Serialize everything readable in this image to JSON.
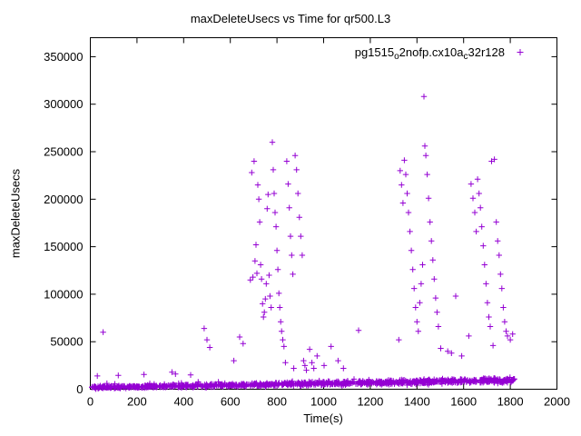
{
  "window": {
    "background": "#ffffff"
  },
  "chart_data": {
    "type": "scatter",
    "title": "maxDeleteUsecs vs Time for qr500.L3",
    "xlabel": "Time(s)",
    "ylabel": "maxDeleteUsecs",
    "xlim": [
      0,
      2000
    ],
    "ylim": [
      0,
      370000
    ],
    "xticks": [
      0,
      200,
      400,
      600,
      800,
      1000,
      1200,
      1400,
      1600,
      1800,
      2000
    ],
    "yticks": [
      0,
      50000,
      100000,
      150000,
      200000,
      250000,
      300000,
      350000
    ],
    "grid": false,
    "legend_position": "top-right-inside",
    "series": [
      {
        "name": "pg1515_o2nofp.cx10a_c32r128",
        "label_parts": [
          {
            "text": "pg1515",
            "sub": false
          },
          {
            "text": "o",
            "sub": true
          },
          {
            "text": "2nofp.cx10a",
            "sub": false
          },
          {
            "text": "c",
            "sub": true
          },
          {
            "text": "32r128",
            "sub": false
          }
        ],
        "marker": "plus",
        "color": "#9400d3",
        "outliers": [
          [
            30,
            14000
          ],
          [
            55,
            60000
          ],
          [
            120,
            14500
          ],
          [
            230,
            15500
          ],
          [
            350,
            18000
          ],
          [
            365,
            16000
          ],
          [
            430,
            15000
          ],
          [
            488,
            64000
          ],
          [
            500,
            52000
          ],
          [
            512,
            44000
          ],
          [
            615,
            30000
          ],
          [
            640,
            55000
          ],
          [
            655,
            48000
          ],
          [
            686,
            115000
          ],
          [
            692,
            228000
          ],
          [
            697,
            118000
          ],
          [
            702,
            240000
          ],
          [
            706,
            135000
          ],
          [
            710,
            152000
          ],
          [
            714,
            122000
          ],
          [
            718,
            215000
          ],
          [
            722,
            200000
          ],
          [
            726,
            176000
          ],
          [
            730,
            131000
          ],
          [
            734,
            116000
          ],
          [
            738,
            90000
          ],
          [
            742,
            76000
          ],
          [
            746,
            81000
          ],
          [
            750,
            95000
          ],
          [
            754,
            111000
          ],
          [
            758,
            190000
          ],
          [
            762,
            205000
          ],
          [
            766,
            120000
          ],
          [
            770,
            98000
          ],
          [
            775,
            86000
          ],
          [
            780,
            260000
          ],
          [
            784,
            231000
          ],
          [
            788,
            206000
          ],
          [
            792,
            186000
          ],
          [
            796,
            171000
          ],
          [
            800,
            146000
          ],
          [
            804,
            126000
          ],
          [
            808,
            101000
          ],
          [
            812,
            86000
          ],
          [
            816,
            71000
          ],
          [
            820,
            61000
          ],
          [
            825,
            52000
          ],
          [
            830,
            45000
          ],
          [
            836,
            28000
          ],
          [
            842,
            240000
          ],
          [
            848,
            216000
          ],
          [
            853,
            191000
          ],
          [
            858,
            161000
          ],
          [
            863,
            141000
          ],
          [
            868,
            121000
          ],
          [
            872,
            22000
          ],
          [
            878,
            246000
          ],
          [
            884,
            231000
          ],
          [
            890,
            206000
          ],
          [
            896,
            181000
          ],
          [
            902,
            161000
          ],
          [
            908,
            141000
          ],
          [
            914,
            30000
          ],
          [
            920,
            25000
          ],
          [
            926,
            20000
          ],
          [
            940,
            42000
          ],
          [
            950,
            28000
          ],
          [
            958,
            22000
          ],
          [
            972,
            35000
          ],
          [
            1002,
            25000
          ],
          [
            1032,
            45000
          ],
          [
            1062,
            30000
          ],
          [
            1085,
            22000
          ],
          [
            1150,
            62000
          ],
          [
            1322,
            52000
          ],
          [
            1328,
            230000
          ],
          [
            1334,
            215000
          ],
          [
            1340,
            196000
          ],
          [
            1346,
            241000
          ],
          [
            1352,
            226000
          ],
          [
            1358,
            206000
          ],
          [
            1364,
            186000
          ],
          [
            1370,
            166000
          ],
          [
            1376,
            146000
          ],
          [
            1382,
            126000
          ],
          [
            1388,
            106000
          ],
          [
            1394,
            86000
          ],
          [
            1400,
            71000
          ],
          [
            1406,
            61000
          ],
          [
            1412,
            91000
          ],
          [
            1418,
            111000
          ],
          [
            1424,
            131000
          ],
          [
            1430,
            308000
          ],
          [
            1434,
            256000
          ],
          [
            1438,
            246000
          ],
          [
            1444,
            226000
          ],
          [
            1450,
            201000
          ],
          [
            1456,
            176000
          ],
          [
            1462,
            156000
          ],
          [
            1468,
            136000
          ],
          [
            1474,
            116000
          ],
          [
            1480,
            96000
          ],
          [
            1486,
            81000
          ],
          [
            1492,
            66000
          ],
          [
            1502,
            43000
          ],
          [
            1532,
            40000
          ],
          [
            1548,
            38000
          ],
          [
            1566,
            98000
          ],
          [
            1592,
            35000
          ],
          [
            1622,
            56000
          ],
          [
            1632,
            216000
          ],
          [
            1640,
            201000
          ],
          [
            1648,
            186000
          ],
          [
            1654,
            166000
          ],
          [
            1660,
            221000
          ],
          [
            1666,
            206000
          ],
          [
            1672,
            191000
          ],
          [
            1678,
            171000
          ],
          [
            1684,
            151000
          ],
          [
            1690,
            131000
          ],
          [
            1696,
            111000
          ],
          [
            1702,
            91000
          ],
          [
            1708,
            76000
          ],
          [
            1714,
            66000
          ],
          [
            1720,
            240000
          ],
          [
            1726,
            46000
          ],
          [
            1732,
            242000
          ],
          [
            1740,
            176000
          ],
          [
            1746,
            156000
          ],
          [
            1752,
            141000
          ],
          [
            1758,
            121000
          ],
          [
            1764,
            106000
          ],
          [
            1770,
            86000
          ],
          [
            1776,
            71000
          ],
          [
            1782,
            61000
          ],
          [
            1788,
            56000
          ],
          [
            1800,
            52000
          ],
          [
            1810,
            58000
          ]
        ],
        "baseline_band": {
          "seed": 42,
          "count": 1000,
          "x_min": 2,
          "x_max": 1820,
          "y_base_start": 1800,
          "y_base_end": 9400,
          "halfwidth_start": 1800,
          "halfwidth_end": 4200,
          "spike_prob": 0.03,
          "spike_height": 4000,
          "y_min": 250
        }
      }
    ]
  }
}
